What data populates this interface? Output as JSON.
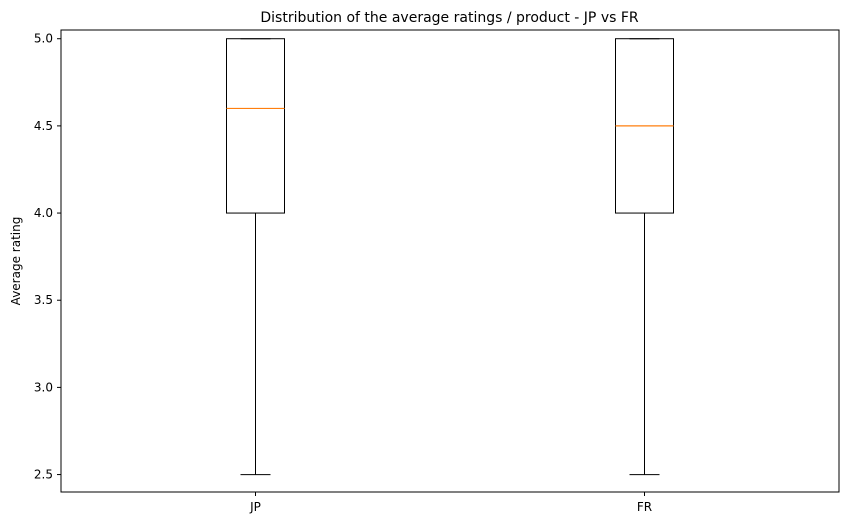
{
  "chart_data": {
    "type": "boxplot",
    "title": "Distribution of the average ratings / product - JP vs FR",
    "xlabel": "",
    "ylabel": "Average rating",
    "ylim": [
      2.4,
      5.05
    ],
    "yticks": [
      "2.5",
      "3.0",
      "3.5",
      "4.0",
      "4.5",
      "5.0"
    ],
    "categories": [
      "JP",
      "FR"
    ],
    "boxes": [
      {
        "category": "JP",
        "whisker_low": 2.5,
        "q1": 4.0,
        "median": 4.6,
        "q3": 5.0,
        "whisker_high": 5.0
      },
      {
        "category": "FR",
        "whisker_low": 2.5,
        "q1": 4.0,
        "median": 4.5,
        "q3": 5.0,
        "whisker_high": 5.0
      }
    ],
    "grid": false,
    "colors": {
      "box": "#000000",
      "median": "#ff7f0e"
    }
  }
}
